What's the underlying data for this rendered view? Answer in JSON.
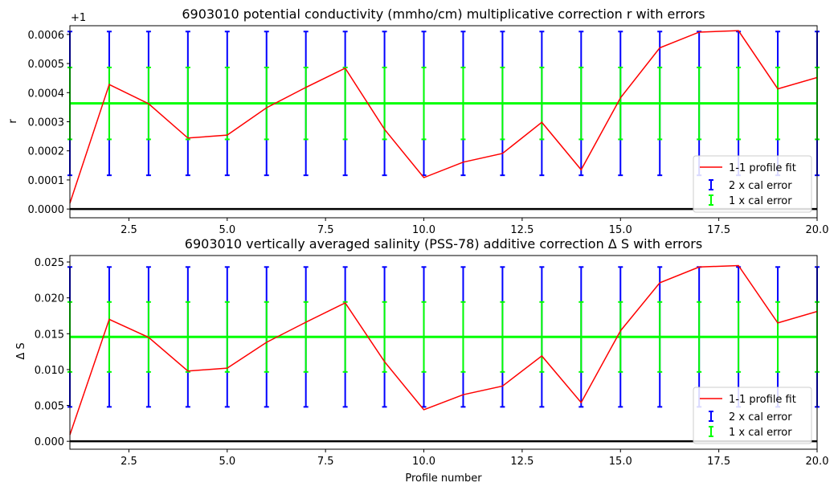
{
  "chart_data": [
    {
      "type": "line",
      "title": "6903010 potential conductivity (mmho/cm) multiplicative correction r with errors",
      "ylabel": "r",
      "offset_label": "+1",
      "xlim": [
        1,
        20
      ],
      "ylim": [
        -3e-05,
        0.00063
      ],
      "xticks": [
        2.5,
        5.0,
        7.5,
        10.0,
        12.5,
        15.0,
        17.5,
        20.0
      ],
      "xtick_labels": [
        "2.5",
        "5.0",
        "7.5",
        "10.0",
        "12.5",
        "15.0",
        "17.5",
        "20.0"
      ],
      "yticks": [
        0.0,
        0.0001,
        0.0002,
        0.0003,
        0.0004,
        0.0005,
        0.0006
      ],
      "ytick_labels": [
        "0.0000",
        "0.0001",
        "0.0002",
        "0.0003",
        "0.0004",
        "0.0005",
        "0.0006"
      ],
      "series": [
        {
          "name": "1-1 profile fit",
          "color": "#ff0000",
          "x": [
            1,
            2,
            3,
            4,
            5,
            6,
            7,
            8,
            9,
            10,
            11,
            12,
            13,
            14,
            15,
            16,
            17,
            18,
            19,
            20
          ],
          "y": [
            2e-05,
            0.000428,
            0.000362,
            0.000244,
            0.000254,
            0.000348,
            0.000418,
            0.000484,
            0.000274,
            0.000108,
            0.000161,
            0.000191,
            0.000298,
            0.000135,
            0.000382,
            0.000554,
            0.000608,
            0.000613,
            0.000413,
            0.000452
          ]
        }
      ],
      "mean_line": {
        "y": 0.000363,
        "color": "#00ff00"
      },
      "zero_line": {
        "y": 0.0,
        "color": "#000000"
      },
      "errorbars": [
        {
          "name": "2 x cal error",
          "color": "#0000ff",
          "center": 0.000363,
          "half_width": 0.000247
        },
        {
          "name": "1 x cal error",
          "color": "#00ff00",
          "center": 0.000363,
          "half_width": 0.0001235
        }
      ],
      "legend_location": "lower-right"
    },
    {
      "type": "line",
      "title": "6903010 vertically averaged salinity (PSS-78) additive correction Δ S with errors",
      "ylabel": "Δ S",
      "xlabel": "Profile number",
      "xlim": [
        1,
        20
      ],
      "ylim": [
        -0.0011,
        0.0259
      ],
      "xticks": [
        2.5,
        5.0,
        7.5,
        10.0,
        12.5,
        15.0,
        17.5,
        20.0
      ],
      "xtick_labels": [
        "2.5",
        "5.0",
        "7.5",
        "10.0",
        "12.5",
        "15.0",
        "17.5",
        "20.0"
      ],
      "yticks": [
        0.0,
        0.005,
        0.01,
        0.015,
        0.02,
        0.025
      ],
      "ytick_labels": [
        "0.000",
        "0.005",
        "0.010",
        "0.015",
        "0.020",
        "0.025"
      ],
      "series": [
        {
          "name": "1-1 profile fit",
          "color": "#ff0000",
          "x": [
            1,
            2,
            3,
            4,
            5,
            6,
            7,
            8,
            9,
            10,
            11,
            12,
            13,
            14,
            15,
            16,
            17,
            18,
            19,
            20
          ],
          "y": [
            0.0009,
            0.017,
            0.0145,
            0.0098,
            0.0102,
            0.0138,
            0.0166,
            0.0193,
            0.0111,
            0.0044,
            0.0065,
            0.0077,
            0.0119,
            0.0054,
            0.0154,
            0.0221,
            0.0243,
            0.0245,
            0.0165,
            0.0181
          ]
        }
      ],
      "mean_line": {
        "y": 0.01455,
        "color": "#00ff00"
      },
      "zero_line": {
        "y": 0.0,
        "color": "#000000"
      },
      "errorbars": [
        {
          "name": "2 x cal error",
          "color": "#0000ff",
          "center": 0.01455,
          "half_width": 0.00975
        },
        {
          "name": "1 x cal error",
          "color": "#00ff00",
          "center": 0.01455,
          "half_width": 0.004875
        }
      ],
      "legend_location": "lower-right"
    }
  ]
}
